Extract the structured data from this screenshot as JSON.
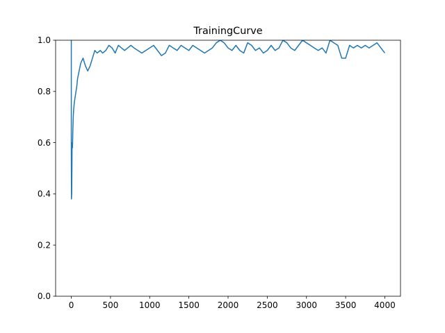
{
  "chart_data": {
    "type": "line",
    "title": "TrainingCurve",
    "xlabel": "",
    "ylabel": "",
    "xlim": [
      -200,
      4200
    ],
    "ylim": [
      0,
      1
    ],
    "x_ticks": [
      0,
      500,
      1000,
      1500,
      2000,
      2500,
      3000,
      3500,
      4000
    ],
    "y_ticks": [
      0.0,
      0.2,
      0.4,
      0.6,
      0.8,
      1.0
    ],
    "x_tick_labels": [
      "0",
      "500",
      "1000",
      "1500",
      "2000",
      "2500",
      "3000",
      "3500",
      "4000"
    ],
    "y_tick_labels": [
      "0.0",
      "0.2",
      "0.4",
      "0.6",
      "0.8",
      "1.0"
    ],
    "grid": false,
    "legend": false,
    "series": [
      {
        "color": "#1f77b4",
        "x": [
          0,
          0,
          2,
          5,
          8,
          10,
          15,
          20,
          25,
          30,
          40,
          50,
          60,
          70,
          80,
          100,
          120,
          150,
          180,
          210,
          240,
          270,
          300,
          330,
          370,
          400,
          440,
          480,
          520,
          560,
          600,
          640,
          680,
          720,
          760,
          800,
          850,
          900,
          950,
          1000,
          1050,
          1100,
          1150,
          1200,
          1250,
          1300,
          1350,
          1400,
          1450,
          1500,
          1550,
          1600,
          1650,
          1700,
          1750,
          1800,
          1850,
          1900,
          1950,
          2000,
          2050,
          2100,
          2150,
          2200,
          2250,
          2300,
          2350,
          2400,
          2450,
          2500,
          2550,
          2600,
          2650,
          2700,
          2750,
          2800,
          2850,
          2900,
          2950,
          3000,
          3050,
          3100,
          3150,
          3200,
          3250,
          3300,
          3350,
          3400,
          3450,
          3500,
          3550,
          3600,
          3650,
          3700,
          3750,
          3800,
          3850,
          3900,
          3950,
          4000
        ],
        "y": [
          1.0,
          0.55,
          0.38,
          0.4,
          0.5,
          0.6,
          0.58,
          0.65,
          0.7,
          0.73,
          0.76,
          0.78,
          0.8,
          0.82,
          0.85,
          0.88,
          0.91,
          0.93,
          0.9,
          0.88,
          0.9,
          0.93,
          0.96,
          0.95,
          0.96,
          0.95,
          0.96,
          0.98,
          0.97,
          0.95,
          0.98,
          0.97,
          0.96,
          0.97,
          0.98,
          0.97,
          0.96,
          0.95,
          0.96,
          0.97,
          0.98,
          0.96,
          0.94,
          0.95,
          0.98,
          0.97,
          0.96,
          0.98,
          0.97,
          0.96,
          0.98,
          0.97,
          0.96,
          0.95,
          0.96,
          0.97,
          0.99,
          1.0,
          0.99,
          0.97,
          0.96,
          0.98,
          0.96,
          0.95,
          0.99,
          0.98,
          0.96,
          0.97,
          0.95,
          0.96,
          0.98,
          0.96,
          0.97,
          1.0,
          0.99,
          0.97,
          0.96,
          0.98,
          1.0,
          0.99,
          0.98,
          0.97,
          0.96,
          0.97,
          0.95,
          1.0,
          0.99,
          0.98,
          0.93,
          0.93,
          0.98,
          0.97,
          0.98,
          0.97,
          0.98,
          0.97,
          0.98,
          0.99,
          0.97,
          0.95
        ]
      }
    ]
  }
}
